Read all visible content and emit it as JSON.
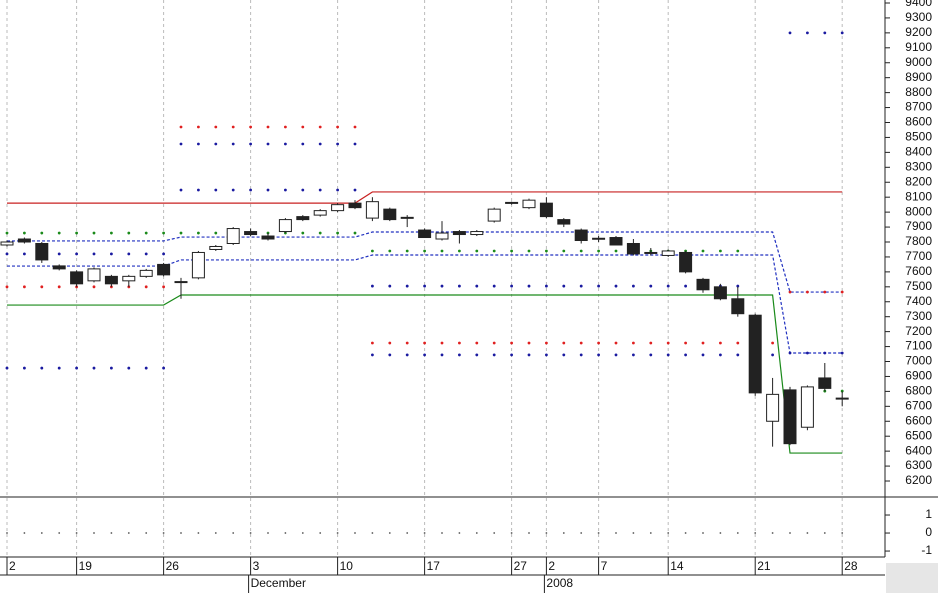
{
  "chart_data": {
    "type": "candlestick",
    "categories": [
      "2",
      null,
      null,
      null,
      "19",
      null,
      null,
      null,
      null,
      "26",
      null,
      null,
      null,
      null,
      "3",
      null,
      null,
      null,
      null,
      "10",
      null,
      null,
      null,
      null,
      "17",
      null,
      null,
      null,
      null,
      "27",
      null,
      "2",
      null,
      null,
      "7",
      null,
      null,
      null,
      "14",
      null,
      null,
      null,
      null,
      "21",
      null,
      null,
      null,
      null,
      "28"
    ],
    "month_labels": [
      null,
      null,
      null,
      null,
      null,
      null,
      null,
      null,
      null,
      null,
      null,
      null,
      null,
      null,
      "December",
      null,
      null,
      null,
      null,
      null,
      null,
      null,
      null,
      null,
      null,
      null,
      null,
      null,
      null,
      null,
      null,
      "2008",
      null,
      null,
      null,
      null,
      null,
      null,
      null,
      null,
      null,
      null,
      null,
      null,
      null,
      null,
      null,
      null,
      null
    ],
    "open": [
      7780,
      7820,
      7790,
      7640,
      7600,
      7540,
      7570,
      7540,
      7570,
      7650,
      7530,
      7560,
      7750,
      7790,
      7870,
      7840,
      7870,
      7970,
      7980,
      8010,
      8060,
      7960,
      8020,
      7960,
      7880,
      7820,
      7870,
      7850,
      7940,
      8060,
      8030,
      8060,
      7950,
      7880,
      7820,
      7830,
      7790,
      7730,
      7710,
      7730,
      7550,
      7500,
      7420,
      7310,
      6600,
      6810,
      6560,
      6890,
      6750
    ],
    "high": [
      7810,
      7830,
      7800,
      7650,
      7610,
      7630,
      7580,
      7580,
      7620,
      7660,
      7560,
      7740,
      7780,
      7900,
      7890,
      7860,
      7960,
      7980,
      8020,
      8060,
      8080,
      8100,
      8030,
      7980,
      7890,
      7940,
      7880,
      7880,
      8030,
      8070,
      8090,
      8100,
      7960,
      7890,
      7840,
      7840,
      7820,
      7760,
      7750,
      7740,
      7560,
      7520,
      7500,
      7320,
      6890,
      6830,
      6840,
      6990,
      6800
    ],
    "low": [
      7770,
      7790,
      7660,
      7610,
      7500,
      7530,
      7500,
      7500,
      7560,
      7570,
      7420,
      7550,
      7740,
      7780,
      7840,
      7810,
      7860,
      7940,
      7970,
      8000,
      8020,
      7940,
      7940,
      7900,
      7830,
      7810,
      7790,
      7840,
      7930,
      8050,
      8020,
      7960,
      7900,
      7790,
      7800,
      7780,
      7710,
      7710,
      7700,
      7590,
      7460,
      7410,
      7300,
      6770,
      6430,
      6440,
      6540,
      6800,
      6700
    ],
    "close": [
      7800,
      7800,
      7680,
      7620,
      7520,
      7620,
      7520,
      7570,
      7610,
      7580,
      7535,
      7730,
      7770,
      7890,
      7850,
      7820,
      7950,
      7950,
      8010,
      8050,
      8030,
      8070,
      7950,
      7965,
      7830,
      7860,
      7850,
      7870,
      8020,
      8065,
      8080,
      7970,
      7920,
      7810,
      7825,
      7780,
      7720,
      7725,
      7740,
      7600,
      7480,
      7420,
      7320,
      6790,
      6780,
      6450,
      6830,
      6820,
      6755
    ],
    "up_color": "#ffffff",
    "down_color": "#222222",
    "series": [
      {
        "style": "line",
        "color": "#c82020",
        "values": [
          8060,
          8060,
          8060,
          8060,
          8060,
          8060,
          8060,
          8060,
          8060,
          8060,
          8060,
          8060,
          8060,
          8060,
          8060,
          8060,
          8060,
          8060,
          8060,
          8060,
          8060,
          8135,
          8135,
          8135,
          8135,
          8135,
          8135,
          8135,
          8135,
          8135,
          8135,
          8135,
          8135,
          8135,
          8135,
          8135,
          8135,
          8135,
          8135,
          8135,
          8135,
          8135,
          8135,
          8135,
          8135,
          8135,
          8135,
          8135,
          8135
        ]
      },
      {
        "style": "line",
        "color": "#1a8a1a",
        "values": [
          7378,
          7378,
          7378,
          7378,
          7378,
          7378,
          7378,
          7378,
          7378,
          7378,
          7445,
          7445,
          7445,
          7445,
          7445,
          7445,
          7445,
          7445,
          7445,
          7445,
          7445,
          7445,
          7445,
          7445,
          7445,
          7445,
          7445,
          7445,
          7445,
          7445,
          7445,
          7445,
          7445,
          7445,
          7445,
          7445,
          7445,
          7445,
          7445,
          7445,
          7445,
          7445,
          7445,
          7445,
          7445,
          6387,
          6387,
          6387,
          6387
        ]
      },
      {
        "style": "dashed",
        "color": "#2030c0",
        "values": [
          7807,
          7807,
          7807,
          7807,
          7807,
          7807,
          7807,
          7807,
          7807,
          7807,
          7833,
          7833,
          7833,
          7833,
          7833,
          7833,
          7833,
          7833,
          7833,
          7833,
          7833,
          7867,
          7867,
          7867,
          7867,
          7867,
          7867,
          7867,
          7867,
          7867,
          7867,
          7867,
          7867,
          7867,
          7867,
          7867,
          7867,
          7867,
          7867,
          7867,
          7867,
          7867,
          7867,
          7867,
          7867,
          7465,
          7465,
          7465,
          7465
        ]
      },
      {
        "style": "dashed",
        "color": "#2030c0",
        "values": [
          7639,
          7639,
          7639,
          7639,
          7639,
          7639,
          7639,
          7639,
          7639,
          7639,
          7680,
          7680,
          7680,
          7680,
          7680,
          7680,
          7680,
          7680,
          7680,
          7680,
          7680,
          7713,
          7713,
          7713,
          7713,
          7713,
          7713,
          7713,
          7713,
          7713,
          7713,
          7713,
          7713,
          7713,
          7713,
          7713,
          7713,
          7713,
          7713,
          7713,
          7713,
          7713,
          7713,
          7713,
          7713,
          7057,
          7057,
          7057,
          7057
        ]
      },
      {
        "style": "dots",
        "color": "#e02020",
        "values": [
          7500,
          7500,
          7500,
          7500,
          7500,
          7500,
          7500,
          7500,
          7500,
          7500,
          8570,
          8570,
          8570,
          8570,
          8570,
          8570,
          8570,
          8570,
          8570,
          8570,
          8570,
          7124,
          7124,
          7124,
          7124,
          7124,
          7124,
          7124,
          7124,
          7124,
          7124,
          7124,
          7124,
          7124,
          7124,
          7124,
          7124,
          7124,
          7124,
          7124,
          7124,
          7124,
          7124,
          7124,
          7124,
          7465,
          7465,
          7465,
          7465
        ]
      },
      {
        "style": "dots",
        "color": "#1a1aa0",
        "values": [
          7720,
          7720,
          7720,
          7720,
          7720,
          7720,
          7720,
          7720,
          7720,
          7720,
          8456,
          8456,
          8456,
          8456,
          8456,
          8456,
          8456,
          8456,
          8456,
          8456,
          8456,
          7505,
          7505,
          7505,
          7505,
          7505,
          7505,
          7505,
          7505,
          7505,
          7505,
          7505,
          7505,
          7505,
          7505,
          7505,
          7505,
          7505,
          7505,
          7505,
          7505,
          7505,
          7505,
          null,
          null,
          9200,
          9200,
          9200,
          9200
        ]
      },
      {
        "style": "dots",
        "color": "#1a1aa0",
        "values": [
          6956,
          6956,
          6956,
          6956,
          6956,
          6956,
          6956,
          6956,
          6956,
          6956,
          8148,
          8148,
          8148,
          8148,
          8148,
          8148,
          8148,
          8148,
          8148,
          8148,
          8148,
          7044,
          7044,
          7044,
          7044,
          7044,
          7044,
          7044,
          7044,
          7044,
          7044,
          7044,
          7044,
          7044,
          7044,
          7044,
          7044,
          7044,
          7044,
          7044,
          7044,
          7044,
          7044,
          7044,
          7044,
          7057,
          7057,
          7057,
          7057
        ]
      },
      {
        "style": "dots",
        "color": "#1a8a1a",
        "values": [
          7860,
          7860,
          7860,
          7860,
          7860,
          7860,
          7860,
          7860,
          7860,
          7860,
          7860,
          7860,
          7860,
          7860,
          7860,
          7860,
          7860,
          7860,
          7860,
          7860,
          7860,
          7740,
          7740,
          7740,
          7740,
          7740,
          7740,
          7740,
          7740,
          7740,
          7740,
          7740,
          7740,
          7740,
          7740,
          7740,
          7740,
          7740,
          7740,
          7740,
          7740,
          7740,
          7740,
          null,
          null,
          null,
          6802,
          6802,
          6802
        ]
      }
    ],
    "ylim": [
      6093,
      9420
    ],
    "yticks": [
      6200,
      6300,
      6400,
      6500,
      6600,
      6700,
      6800,
      6900,
      7000,
      7100,
      7200,
      7300,
      7400,
      7500,
      7600,
      7700,
      7800,
      7900,
      8000,
      8100,
      8200,
      8300,
      8400,
      8500,
      8600,
      8700,
      8800,
      8900,
      9000,
      9100,
      9200,
      9300,
      9400
    ],
    "lower_panel": {
      "ylim": [
        -1.33,
        2
      ],
      "yticks": [
        1,
        0,
        -1
      ],
      "color": "#555555",
      "values": [
        0,
        0,
        0,
        0,
        0,
        0,
        0,
        0,
        0,
        0,
        0,
        0,
        0,
        0,
        0,
        0,
        0,
        0,
        0,
        0,
        0,
        0,
        0,
        0,
        0,
        0,
        0,
        0,
        0,
        0,
        0,
        0,
        0,
        0,
        0,
        0,
        0,
        0,
        0,
        0,
        0,
        0,
        0,
        0,
        0,
        0,
        0,
        0,
        0
      ]
    },
    "grid": true
  }
}
